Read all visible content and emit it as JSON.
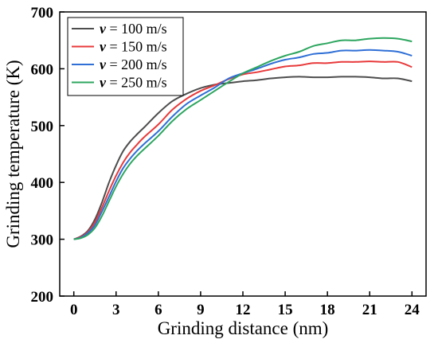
{
  "chart_data": {
    "type": "line",
    "xlabel": "Grinding distance (nm)",
    "ylabel": "Grinding temperature (K)",
    "xlim": [
      -1,
      25
    ],
    "ylim": [
      200,
      700
    ],
    "xticks": [
      0,
      3,
      6,
      9,
      12,
      15,
      18,
      21,
      24
    ],
    "yticks": [
      200,
      300,
      400,
      500,
      600,
      700
    ],
    "grid": false,
    "legend_position": "top-left",
    "series": [
      {
        "name_prefix": "v",
        "name_suffix": " = 100 m/s",
        "color": "#4d4d4d",
        "x": [
          0,
          0.5,
          1,
          1.5,
          2,
          2.5,
          3,
          3.5,
          4,
          4.5,
          5,
          6,
          7,
          8,
          9,
          10,
          11,
          12,
          13,
          14,
          15,
          16,
          17,
          18,
          19,
          20,
          21,
          22,
          23,
          24
        ],
        "y": [
          300,
          305,
          315,
          335,
          365,
          400,
          430,
          455,
          472,
          485,
          497,
          522,
          543,
          556,
          566,
          572,
          575,
          578,
          580,
          583,
          585,
          586,
          585,
          585,
          586,
          586,
          585,
          583,
          583,
          578
        ]
      },
      {
        "name_prefix": "v",
        "name_suffix": " = 150 m/s",
        "color": "#e8393a",
        "x": [
          0,
          0.5,
          1,
          1.5,
          2,
          2.5,
          3,
          3.5,
          4,
          4.5,
          5,
          6,
          7,
          8,
          9,
          10,
          11,
          12,
          13,
          14,
          15,
          16,
          17,
          18,
          19,
          20,
          21,
          22,
          23,
          24
        ],
        "y": [
          300,
          304,
          313,
          330,
          356,
          385,
          412,
          435,
          453,
          467,
          480,
          502,
          528,
          547,
          561,
          571,
          582,
          590,
          594,
          599,
          604,
          606,
          610,
          610,
          612,
          612,
          613,
          612,
          612,
          603
        ]
      },
      {
        "name_prefix": "v",
        "name_suffix": " = 200 m/s",
        "color": "#2f6fd6",
        "x": [
          0,
          0.5,
          1,
          1.5,
          2,
          2.5,
          3,
          3.5,
          4,
          4.5,
          5,
          6,
          7,
          8,
          9,
          10,
          11,
          12,
          13,
          14,
          15,
          16,
          17,
          18,
          19,
          20,
          21,
          22,
          23,
          24
        ],
        "y": [
          300,
          303,
          311,
          325,
          349,
          375,
          402,
          425,
          442,
          456,
          468,
          490,
          516,
          538,
          553,
          567,
          583,
          592,
          600,
          609,
          616,
          620,
          626,
          628,
          632,
          632,
          633,
          632,
          630,
          623
        ]
      },
      {
        "name_prefix": "v",
        "name_suffix": " = 250 m/s",
        "color": "#2da65f",
        "x": [
          0,
          0.5,
          1,
          1.5,
          2,
          2.5,
          3,
          3.5,
          4,
          4.5,
          5,
          6,
          7,
          8,
          9,
          10,
          11,
          12,
          13,
          14,
          15,
          16,
          17,
          18,
          19,
          20,
          21,
          22,
          23,
          24
        ],
        "y": [
          300,
          302,
          308,
          320,
          341,
          367,
          393,
          415,
          433,
          447,
          459,
          482,
          508,
          529,
          545,
          561,
          577,
          592,
          603,
          614,
          623,
          630,
          640,
          645,
          650,
          650,
          653,
          654,
          653,
          648
        ]
      }
    ]
  }
}
